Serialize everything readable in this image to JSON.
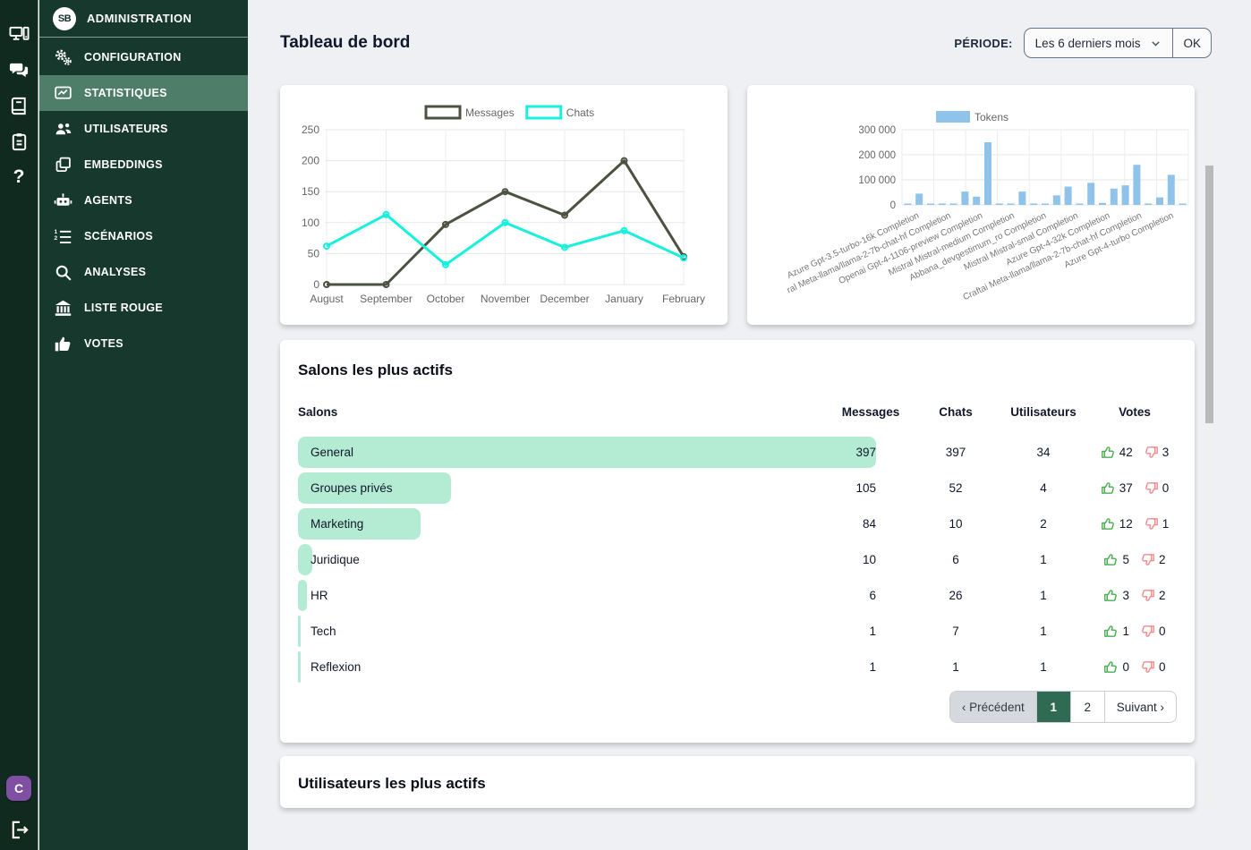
{
  "rail": {
    "icons": [
      {
        "name": "workstation-icon"
      },
      {
        "name": "chat-bubbles-icon"
      },
      {
        "name": "book-icon"
      },
      {
        "name": "clipboard-icon"
      },
      {
        "name": "help-icon",
        "glyph": "?"
      }
    ],
    "avatar_letter": "C"
  },
  "sidebar": {
    "logo_text": "SB",
    "header_label": "ADMINISTRATION",
    "items": [
      {
        "label": "CONFIGURATION",
        "icon": "gears-icon",
        "active": false
      },
      {
        "label": "STATISTIQUES",
        "icon": "chart-line-icon",
        "active": true
      },
      {
        "label": "UTILISATEURS",
        "icon": "users-icon",
        "active": false
      },
      {
        "label": "EMBEDDINGS",
        "icon": "copy-icon",
        "active": false
      },
      {
        "label": "AGENTS",
        "icon": "robot-icon",
        "active": false
      },
      {
        "label": "SCÉNARIOS",
        "icon": "numbered-list-icon",
        "active": false
      },
      {
        "label": "ANALYSES",
        "icon": "search-icon",
        "active": false
      },
      {
        "label": "LISTE ROUGE",
        "icon": "bank-icon",
        "active": false
      },
      {
        "label": "VOTES",
        "icon": "thumbs-up-icon",
        "active": false
      }
    ]
  },
  "header": {
    "title": "Tableau de bord",
    "period_label": "PÉRIODE:",
    "period_value": "Les 6 derniers mois",
    "ok_label": "OK"
  },
  "chart_data": [
    {
      "type": "line",
      "categories": [
        "August",
        "September",
        "October",
        "November",
        "December",
        "January",
        "February"
      ],
      "series": [
        {
          "name": "Messages",
          "color": "#4b5340",
          "values": [
            0,
            0,
            97,
            150,
            112,
            200,
            45
          ]
        },
        {
          "name": "Chats",
          "color": "#16f0dd",
          "values": [
            62,
            113,
            32,
            100,
            60,
            87,
            43
          ]
        }
      ],
      "ylim": [
        0,
        250
      ],
      "yticks": [
        0,
        50,
        100,
        150,
        200,
        250
      ],
      "grid": true,
      "legend_position": "top"
    },
    {
      "type": "bar",
      "series": [
        {
          "name": "Tokens",
          "color": "#8fc3ea"
        }
      ],
      "values": [
        2000,
        45000,
        2000,
        2000,
        2000,
        53000,
        33000,
        250000,
        2000,
        2000,
        53000,
        2000,
        2000,
        38000,
        73000,
        2000,
        88000,
        8000,
        65000,
        78000,
        160000,
        2000,
        30000,
        120000,
        2000
      ],
      "visible_labels": [
        "Azure Gpt-3.5-turbo-16k Completion",
        "ral Meta-llama/llama-2-7b-chat-hf Completion",
        "Openai Gpt-4-1106-preview Completion",
        "Mistral Mistral-medium Completion",
        "Abbana_devgestimum_ro Completion",
        "Mistral Mistral-smal Completion",
        "Azure Gpt-4-32k Completion",
        "Craftai Meta-llama/llama-2-7b-chat-hf Completion",
        "Azure Gpt-4-turbo Completion"
      ],
      "ylim": [
        0,
        300000
      ],
      "yticks": [
        0,
        100000,
        200000,
        300000
      ],
      "ytick_labels": [
        "0",
        "100 000",
        "200 000",
        "300 000"
      ],
      "grid": true,
      "legend_position": "top",
      "label_rotation": -25
    }
  ],
  "salons": {
    "title": "Salons les plus actifs",
    "columns": [
      "Salons",
      "Messages",
      "Chats",
      "Utilisateurs",
      "Votes"
    ],
    "max_messages": 397,
    "rows": [
      {
        "name": "General",
        "messages": 397,
        "chats": 397,
        "utilisateurs": 34,
        "up": 42,
        "down": 3
      },
      {
        "name": "Groupes privés",
        "messages": 105,
        "chats": 52,
        "utilisateurs": 4,
        "up": 37,
        "down": 0
      },
      {
        "name": "Marketing",
        "messages": 84,
        "chats": 10,
        "utilisateurs": 2,
        "up": 12,
        "down": 1
      },
      {
        "name": "Juridique",
        "messages": 10,
        "chats": 6,
        "utilisateurs": 1,
        "up": 5,
        "down": 2
      },
      {
        "name": "HR",
        "messages": 6,
        "chats": 26,
        "utilisateurs": 1,
        "up": 3,
        "down": 2
      },
      {
        "name": "Tech",
        "messages": 1,
        "chats": 7,
        "utilisateurs": 1,
        "up": 1,
        "down": 0
      },
      {
        "name": "Reflexion",
        "messages": 1,
        "chats": 1,
        "utilisateurs": 1,
        "up": 0,
        "down": 0
      }
    ],
    "pagination": {
      "prev": "‹ Précédent",
      "pages": [
        {
          "label": "1",
          "active": true
        },
        {
          "label": "2",
          "active": false
        }
      ],
      "next": "Suivant ›"
    }
  },
  "users_section": {
    "title": "Utilisateurs les plus actifs"
  },
  "colors": {
    "accent_green": "#2f6b52",
    "row_bar": "#b4ecd3",
    "messages_line": "#4b5340",
    "chats_line": "#16f0dd",
    "tokens_bar": "#8fc3ea",
    "thumb_up": "#4caf50",
    "thumb_down": "#f28b8b",
    "sidebar_bg": "#17382c",
    "rail_bg": "#112a20",
    "sidebar_active": "#4e7d6a",
    "avatar_bg": "#7e4fa3"
  }
}
